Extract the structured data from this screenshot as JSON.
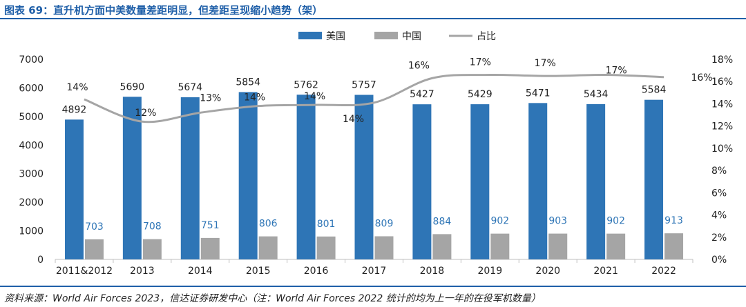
{
  "title": "图表 69：直升机方面中美数量差距明显，但差距呈现缩小趋势（架）",
  "source": "资料来源：World Air Forces 2023，信达证券研发中心（注：World Air Forces 2022 统计的均为上一年的在役军机数量）",
  "colors": {
    "usa": "#2e75b6",
    "china": "#a5a5a5",
    "share": "#a5a5a5",
    "frame": "#1f5fa8",
    "cn_label": "#2e75b6"
  },
  "chart_data": {
    "type": "bar",
    "categories": [
      "2011&2012",
      "2013",
      "2014",
      "2015",
      "2016",
      "2017",
      "2018",
      "2019",
      "2020",
      "2021",
      "2022"
    ],
    "series": [
      {
        "name": "美国",
        "type": "bar",
        "axis": "left",
        "values": [
          4892,
          5690,
          5674,
          5854,
          5762,
          5757,
          5427,
          5429,
          5471,
          5434,
          5584
        ]
      },
      {
        "name": "中国",
        "type": "bar",
        "axis": "left",
        "values": [
          703,
          708,
          751,
          806,
          801,
          809,
          884,
          902,
          903,
          902,
          913
        ]
      },
      {
        "name": "占比",
        "type": "line",
        "axis": "right",
        "values": [
          14.4,
          12.4,
          13.2,
          13.8,
          13.9,
          14.1,
          16.3,
          16.6,
          16.5,
          16.6,
          16.4
        ],
        "labels": [
          "14%",
          "12%",
          "13%",
          "14%",
          "14%",
          "14%",
          "16%",
          "17%",
          "17%",
          "17%",
          "16%"
        ]
      }
    ],
    "ylim": [
      0,
      7000
    ],
    "yticks": [
      "0",
      "1000",
      "2000",
      "3000",
      "4000",
      "5000",
      "6000",
      "7000"
    ],
    "y2lim": [
      0,
      18
    ],
    "y2ticks": [
      "0%",
      "2%",
      "4%",
      "6%",
      "8%",
      "10%",
      "12%",
      "14%",
      "16%",
      "18%"
    ],
    "legend": {
      "position": "top",
      "items": [
        "美国",
        "中国",
        "占比"
      ]
    },
    "grid": false
  }
}
